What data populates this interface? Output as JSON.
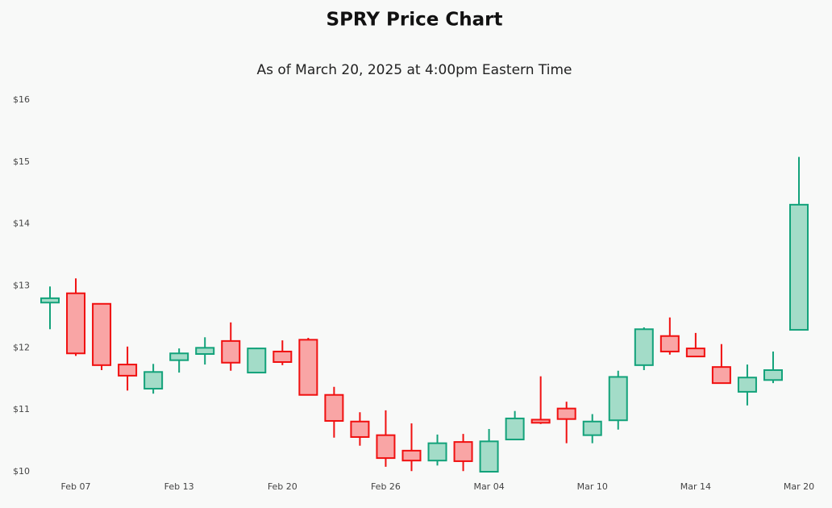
{
  "chart_data": {
    "type": "candlestick",
    "title": "SPRY Price Chart",
    "subtitle": "As of March 20, 2025 at 4:00pm Eastern Time",
    "categories": [
      null,
      "Feb 07",
      null,
      null,
      null,
      "Feb 13",
      null,
      null,
      null,
      "Feb 20",
      null,
      null,
      null,
      "Feb 26",
      null,
      null,
      null,
      "Mar 04",
      null,
      null,
      null,
      "Mar 10",
      null,
      null,
      null,
      "Mar 14",
      null,
      null,
      null,
      "Mar 20"
    ],
    "open": [
      12.73,
      12.88,
      12.71,
      11.73,
      11.34,
      11.8,
      11.9,
      12.11,
      11.6,
      11.94,
      12.13,
      11.24,
      10.81,
      10.59,
      10.34,
      10.18,
      10.48,
      10.0,
      10.52,
      10.84,
      11.02,
      10.59,
      10.83,
      11.72,
      12.19,
      11.99,
      11.69,
      11.29,
      11.48,
      12.29
    ],
    "high": [
      12.99,
      13.12,
      12.71,
      12.02,
      11.74,
      11.99,
      12.17,
      12.41,
      12.0,
      12.12,
      12.16,
      11.37,
      10.96,
      10.99,
      10.78,
      10.6,
      10.61,
      10.69,
      10.98,
      11.54,
      11.13,
      10.93,
      11.63,
      12.33,
      12.49,
      12.24,
      12.06,
      11.73,
      11.94,
      15.08
    ],
    "low": [
      12.3,
      11.87,
      11.64,
      11.31,
      11.26,
      11.6,
      11.73,
      11.63,
      11.6,
      11.72,
      11.24,
      10.55,
      10.42,
      10.08,
      10.01,
      10.1,
      10.01,
      10.0,
      10.52,
      10.77,
      10.46,
      10.46,
      10.68,
      11.64,
      11.89,
      11.86,
      11.43,
      11.07,
      11.43,
      12.29
    ],
    "close": [
      12.8,
      11.91,
      11.72,
      11.55,
      11.61,
      11.91,
      12.0,
      11.76,
      11.99,
      11.77,
      11.24,
      10.82,
      10.56,
      10.22,
      10.18,
      10.46,
      10.17,
      10.49,
      10.86,
      10.79,
      10.85,
      10.81,
      11.53,
      12.3,
      11.94,
      11.86,
      11.43,
      11.52,
      11.64,
      14.31
    ],
    "up_color": "#12a27a",
    "up_fill": "#a3dcc8",
    "down_color": "#f01010",
    "down_fill": "#f9a5a5",
    "ylim": [
      10,
      16
    ],
    "yticks": [
      {
        "value": 10,
        "label": "$10"
      },
      {
        "value": 11,
        "label": "$11"
      },
      {
        "value": 12,
        "label": "$12"
      },
      {
        "value": 13,
        "label": "$13"
      },
      {
        "value": 14,
        "label": "$14"
      },
      {
        "value": 15,
        "label": "$15"
      },
      {
        "value": 16,
        "label": "$16"
      }
    ]
  }
}
